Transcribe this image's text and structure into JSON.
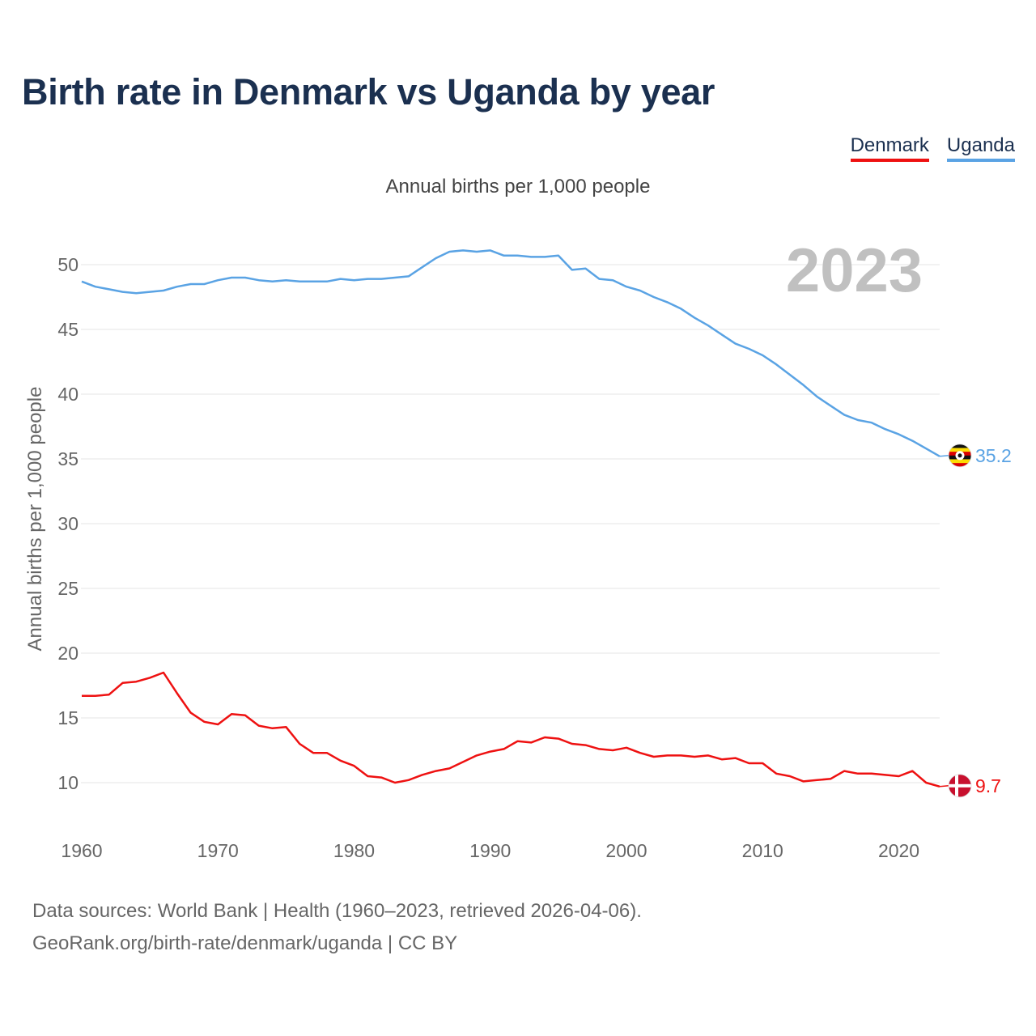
{
  "title": "Birth rate in Denmark vs Uganda by year",
  "subtitle": "Annual births per 1,000 people",
  "legend": [
    {
      "label": "Denmark",
      "color": "#ee1111"
    },
    {
      "label": "Uganda",
      "color": "#5aa3e4"
    }
  ],
  "year_label": "2023",
  "footer": {
    "line1": "Data sources: World Bank | Health (1960–2023, retrieved 2026-04-06).",
    "line2": "GeoRank.org/birth-rate/denmark/uganda | CC BY"
  },
  "chart_data": {
    "type": "line",
    "title": "Birth rate in Denmark vs Uganda by year",
    "xlabel": "",
    "ylabel": "Annual births per 1,000 people",
    "xlim": [
      1960,
      2023
    ],
    "ylim": [
      7,
      53
    ],
    "xticks": [
      1960,
      1970,
      1980,
      1990,
      2000,
      2010,
      2020
    ],
    "yticks": [
      10,
      15,
      20,
      25,
      30,
      35,
      40,
      45,
      50
    ],
    "grid": true,
    "legend_position": "top-right",
    "x": [
      1960,
      1961,
      1962,
      1963,
      1964,
      1965,
      1966,
      1967,
      1968,
      1969,
      1970,
      1971,
      1972,
      1973,
      1974,
      1975,
      1976,
      1977,
      1978,
      1979,
      1980,
      1981,
      1982,
      1983,
      1984,
      1985,
      1986,
      1987,
      1988,
      1989,
      1990,
      1991,
      1992,
      1993,
      1994,
      1995,
      1996,
      1997,
      1998,
      1999,
      2000,
      2001,
      2002,
      2003,
      2004,
      2005,
      2006,
      2007,
      2008,
      2009,
      2010,
      2011,
      2012,
      2013,
      2014,
      2015,
      2016,
      2017,
      2018,
      2019,
      2020,
      2021,
      2022,
      2023
    ],
    "series": [
      {
        "name": "Uganda",
        "color": "#5aa3e4",
        "end_label": "35.2",
        "values": [
          48.7,
          48.3,
          48.1,
          47.9,
          47.8,
          47.9,
          48.0,
          48.3,
          48.5,
          48.5,
          48.8,
          49.0,
          49.0,
          48.8,
          48.7,
          48.8,
          48.7,
          48.7,
          48.7,
          48.9,
          48.8,
          48.9,
          48.9,
          49.0,
          49.1,
          49.8,
          50.5,
          51.0,
          51.1,
          51.0,
          51.1,
          50.7,
          50.7,
          50.6,
          50.6,
          50.7,
          49.6,
          49.7,
          48.9,
          48.8,
          48.3,
          48.0,
          47.5,
          47.1,
          46.6,
          45.9,
          45.3,
          44.6,
          43.9,
          43.5,
          43.0,
          42.3,
          41.5,
          40.7,
          39.8,
          39.1,
          38.4,
          38.0,
          37.8,
          37.3,
          36.9,
          36.4,
          35.8,
          35.2
        ]
      },
      {
        "name": "Denmark",
        "color": "#ee1111",
        "end_label": "9.7",
        "values": [
          16.7,
          16.7,
          16.8,
          17.7,
          17.8,
          18.1,
          18.5,
          16.9,
          15.4,
          14.7,
          14.5,
          15.3,
          15.2,
          14.4,
          14.2,
          14.3,
          13.0,
          12.3,
          12.3,
          11.7,
          11.3,
          10.5,
          10.4,
          10.0,
          10.2,
          10.6,
          10.9,
          11.1,
          11.6,
          12.1,
          12.4,
          12.6,
          13.2,
          13.1,
          13.5,
          13.4,
          13.0,
          12.9,
          12.6,
          12.5,
          12.7,
          12.3,
          12.0,
          12.1,
          12.1,
          12.0,
          12.1,
          11.8,
          11.9,
          11.5,
          11.5,
          10.7,
          10.5,
          10.1,
          10.2,
          10.3,
          10.9,
          10.7,
          10.7,
          10.6,
          10.5,
          10.9,
          10.0,
          9.7
        ]
      }
    ]
  }
}
